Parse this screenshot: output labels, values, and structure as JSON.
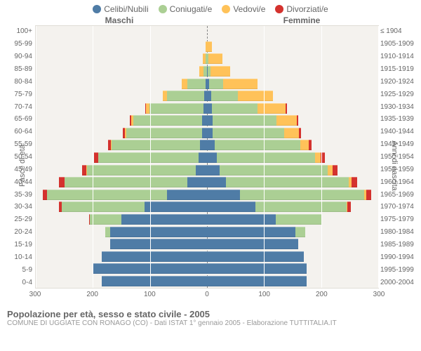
{
  "legend": [
    {
      "label": "Celibi/Nubili",
      "color": "#4f7ca6"
    },
    {
      "label": "Coniugati/e",
      "color": "#abcf94"
    },
    {
      "label": "Vedovi/e",
      "color": "#ffc259"
    },
    {
      "label": "Divorziati/e",
      "color": "#d4322e"
    }
  ],
  "headers": {
    "m": "Maschi",
    "f": "Femmine"
  },
  "axis_left_label": "Fasce di età",
  "axis_right_label": "Anni di nascita",
  "x_max": 300,
  "x_ticks": [
    -300,
    -200,
    -100,
    0,
    100,
    200,
    300
  ],
  "title": "Popolazione per età, sesso e stato civile - 2005",
  "subtitle": "COMUNE DI UGGIATE CON RONAGO (CO) - Dati ISTAT 1° gennaio 2005 - Elaborazione TUTTITALIA.IT",
  "rows": [
    {
      "age": "100+",
      "year": "≤ 1904",
      "m": [
        0,
        0,
        0,
        0
      ],
      "f": [
        0,
        0,
        0,
        0
      ]
    },
    {
      "age": "95-99",
      "year": "1905-1909",
      "m": [
        0,
        0,
        2,
        0
      ],
      "f": [
        0,
        0,
        8,
        0
      ]
    },
    {
      "age": "90-94",
      "year": "1910-1914",
      "m": [
        0,
        2,
        6,
        0
      ],
      "f": [
        0,
        2,
        25,
        0
      ]
    },
    {
      "age": "85-89",
      "year": "1915-1919",
      "m": [
        0,
        6,
        7,
        0
      ],
      "f": [
        1,
        5,
        35,
        0
      ]
    },
    {
      "age": "80-84",
      "year": "1920-1924",
      "m": [
        3,
        32,
        9,
        0
      ],
      "f": [
        4,
        24,
        60,
        0
      ]
    },
    {
      "age": "75-79",
      "year": "1925-1929",
      "m": [
        5,
        65,
        8,
        0
      ],
      "f": [
        7,
        47,
        62,
        0
      ]
    },
    {
      "age": "70-74",
      "year": "1930-1934",
      "m": [
        6,
        95,
        6,
        1
      ],
      "f": [
        8,
        80,
        50,
        2
      ]
    },
    {
      "age": "65-69",
      "year": "1935-1939",
      "m": [
        9,
        120,
        4,
        2
      ],
      "f": [
        10,
        112,
        35,
        3
      ]
    },
    {
      "age": "60-64",
      "year": "1940-1944",
      "m": [
        9,
        133,
        2,
        3
      ],
      "f": [
        10,
        125,
        26,
        4
      ]
    },
    {
      "age": "55-59",
      "year": "1945-1949",
      "m": [
        12,
        155,
        1,
        5
      ],
      "f": [
        13,
        150,
        15,
        5
      ]
    },
    {
      "age": "50-54",
      "year": "1950-1954",
      "m": [
        15,
        175,
        1,
        7
      ],
      "f": [
        17,
        172,
        10,
        8
      ]
    },
    {
      "age": "45-49",
      "year": "1955-1959",
      "m": [
        20,
        190,
        1,
        8
      ],
      "f": [
        22,
        190,
        8,
        9
      ]
    },
    {
      "age": "40-44",
      "year": "1960-1964",
      "m": [
        35,
        215,
        0,
        10
      ],
      "f": [
        33,
        215,
        5,
        10
      ]
    },
    {
      "age": "35-39",
      "year": "1965-1969",
      "m": [
        70,
        210,
        0,
        8
      ],
      "f": [
        58,
        218,
        3,
        9
      ]
    },
    {
      "age": "30-34",
      "year": "1970-1974",
      "m": [
        110,
        145,
        0,
        5
      ],
      "f": [
        85,
        160,
        1,
        6
      ]
    },
    {
      "age": "25-29",
      "year": "1975-1979",
      "m": [
        150,
        55,
        0,
        1
      ],
      "f": [
        120,
        80,
        0,
        2
      ]
    },
    {
      "age": "20-24",
      "year": "1980-1984",
      "m": [
        170,
        8,
        0,
        0
      ],
      "f": [
        155,
        17,
        0,
        0
      ]
    },
    {
      "age": "15-19",
      "year": "1985-1989",
      "m": [
        170,
        0,
        0,
        0
      ],
      "f": [
        160,
        0,
        0,
        0
      ]
    },
    {
      "age": "10-14",
      "year": "1990-1994",
      "m": [
        185,
        0,
        0,
        0
      ],
      "f": [
        170,
        0,
        0,
        0
      ]
    },
    {
      "age": "5-9",
      "year": "1995-1999",
      "m": [
        200,
        0,
        0,
        0
      ],
      "f": [
        175,
        0,
        0,
        0
      ]
    },
    {
      "age": "0-4",
      "year": "2000-2004",
      "m": [
        185,
        0,
        0,
        0
      ],
      "f": [
        175,
        0,
        0,
        0
      ]
    }
  ]
}
